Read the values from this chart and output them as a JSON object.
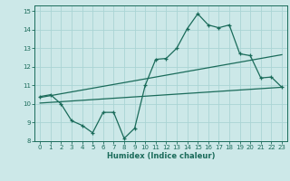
{
  "title": "",
  "xlabel": "Humidex (Indice chaleur)",
  "ylabel": "",
  "background_color": "#cce8e8",
  "grid_color": "#aad4d4",
  "line_color": "#1a6b5a",
  "xlim": [
    -0.5,
    23.5
  ],
  "ylim": [
    8,
    15.3
  ],
  "xticks": [
    0,
    1,
    2,
    3,
    4,
    5,
    6,
    7,
    8,
    9,
    10,
    11,
    12,
    13,
    14,
    15,
    16,
    17,
    18,
    19,
    20,
    21,
    22,
    23
  ],
  "yticks": [
    8,
    9,
    10,
    11,
    12,
    13,
    14,
    15
  ],
  "curve1_x": [
    0,
    1,
    2,
    3,
    4,
    5,
    6,
    7,
    8,
    9,
    10,
    11,
    12,
    13,
    14,
    15,
    16,
    17,
    18,
    19,
    20,
    21,
    22,
    23
  ],
  "curve1_y": [
    10.4,
    10.5,
    10.0,
    9.1,
    8.85,
    8.45,
    9.55,
    9.55,
    8.15,
    8.7,
    11.0,
    12.4,
    12.45,
    13.0,
    14.05,
    14.85,
    14.25,
    14.1,
    14.25,
    12.7,
    12.6,
    11.4,
    11.45,
    10.9
  ],
  "line1_x": [
    0,
    23
  ],
  "line1_y": [
    10.35,
    12.65
  ],
  "line2_x": [
    0,
    23
  ],
  "line2_y": [
    10.05,
    10.9
  ]
}
